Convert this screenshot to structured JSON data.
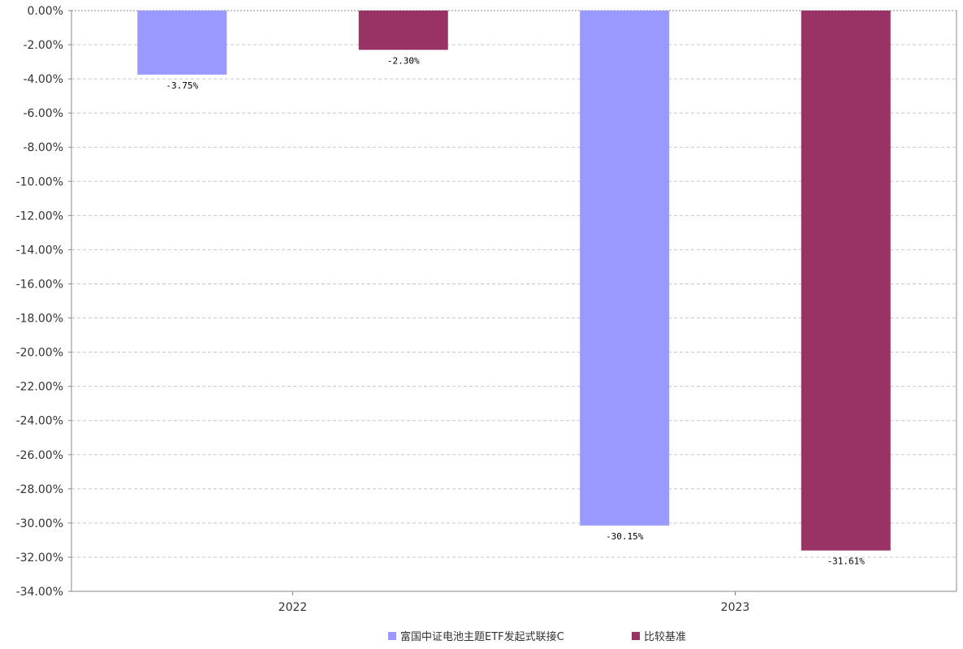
{
  "chart_data": {
    "type": "bar",
    "categories": [
      "2022",
      "2023"
    ],
    "series": [
      {
        "name": "富国中证电池主题ETF发起式联接C",
        "values": [
          -3.75,
          -30.15
        ],
        "labels": [
          "-3.75%",
          "-30.15%"
        ],
        "color": "#9999ff"
      },
      {
        "name": "比较基准",
        "values": [
          -2.3,
          -31.61
        ],
        "labels": [
          "-2.30%",
          "-31.61%"
        ],
        "color": "#993366"
      }
    ],
    "y_ticks": [
      0,
      -2,
      -4,
      -6,
      -8,
      -10,
      -12,
      -14,
      -16,
      -18,
      -20,
      -22,
      -24,
      -26,
      -28,
      -30,
      -32,
      -34
    ],
    "y_tick_labels": [
      "0.00%",
      "-2.00%",
      "-4.00%",
      "-6.00%",
      "-8.00%",
      "-10.00%",
      "-12.00%",
      "-14.00%",
      "-16.00%",
      "-18.00%",
      "-20.00%",
      "-22.00%",
      "-24.00%",
      "-26.00%",
      "-28.00%",
      "-30.00%",
      "-32.00%",
      "-34.00%"
    ],
    "ylim": [
      -34,
      0
    ],
    "grid": true,
    "legend_position": "bottom-center",
    "title": "",
    "xlabel": "",
    "ylabel": ""
  }
}
